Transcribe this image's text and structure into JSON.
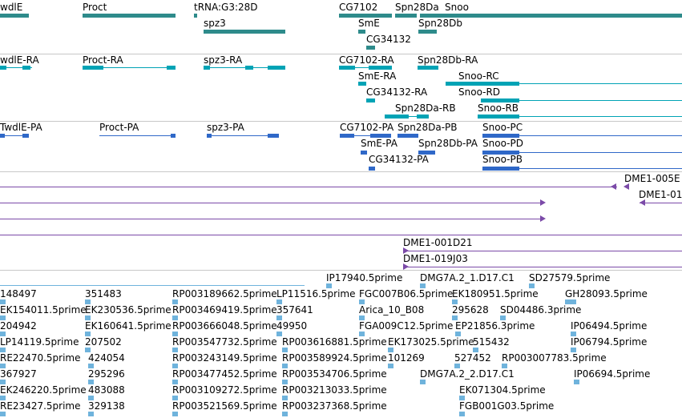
{
  "colors": {
    "gene": "#2e8b8b",
    "transcript": "#00a3b5",
    "protein": "#2f68c8",
    "clone": "#7b4aa8",
    "est": "#6fb3dc",
    "separator": "#c8c8c8"
  },
  "genes": {
    "twdlE": "wdlE",
    "proct": "Proct",
    "trna": "tRNA:G3:28D",
    "spz3": "spz3",
    "cg7102": "CG7102",
    "spn28da": "Spn28Da",
    "snoo": "Snoo",
    "sme": "SmE",
    "spn28db": "Spn28Db",
    "cg34132": "CG34132"
  },
  "transcripts": {
    "twdlE": "wdlE-RA",
    "proct": "Proct-RA",
    "spz3": "spz3-RA",
    "cg7102": "CG7102-RA",
    "spn28db": "Spn28Db-RA",
    "sme": "SmE-RA",
    "snoo_rc": "Snoo-RC",
    "cg34132": "CG34132-RA",
    "snoo_rd": "Snoo-RD",
    "spn28da": "Spn28Da-RB",
    "snoo_rb": "Snoo-RB"
  },
  "proteins": {
    "twdlE": "TwdlE-PA",
    "proct": "Proct-PA",
    "spz3": "spz3-PA",
    "cg7102": "CG7102-PA",
    "spn28da": "Spn28Da-PB",
    "snoo_pc": "Snoo-PC",
    "sme": "SmE-PA",
    "spn28db": "Spn28Db-PA",
    "snoo_pd": "Snoo-PD",
    "cg34132": "CG34132-PA",
    "snoo_pb": "Snoo-PB"
  },
  "clones": {
    "c005": "DME1-005E",
    "c01": "DME1-01",
    "c001d21": "DME1-001D21",
    "c019j03": "DME1-019J03"
  },
  "ests": [
    "IP17940.5prime",
    "DMG7A.2_1.D17.C1",
    "SD27579.5prime",
    "148497",
    "351483",
    "RP003189662.5prime",
    "LP11516.5prime",
    "FGC007B06.5prime",
    "EK180951.5prime",
    "GH28093.5prime",
    "EK154011.5prime",
    "EK230536.5prime",
    "RP003469419.5prime",
    "357641",
    "Arica_10_B08",
    "295628",
    "SD04486.3prime",
    "204942",
    "EK160641.5prime",
    "RP003666048.5prime",
    "49950",
    "FGA009C12.5prime",
    "EP21856.3prime",
    "IP06494.5prime",
    "LP14119.5prime",
    "207502",
    "RP003547732.5prime",
    "RP003616881.5prime",
    "EK173025.5prime",
    "515432",
    "IP06794.5prime",
    "RE22470.5prime",
    "424054",
    "RP003243149.5prime",
    "RP003589924.5prime",
    "101269",
    "527452",
    "RP003007783.5prime",
    "367927",
    "295296",
    "RP003477452.5prime",
    "RP003534706.5prime",
    "DMG7A.2_2.D17.C1",
    "IP06694.5prime",
    "EK246220.5prime",
    "483088",
    "RP003109272.5prime",
    "RP003213033.5prime",
    "EK071304.5prime",
    "RE23427.5prime",
    "329138",
    "RP003521569.5prime",
    "RP003237368.5prime",
    "FGB001G03.5prime"
  ]
}
